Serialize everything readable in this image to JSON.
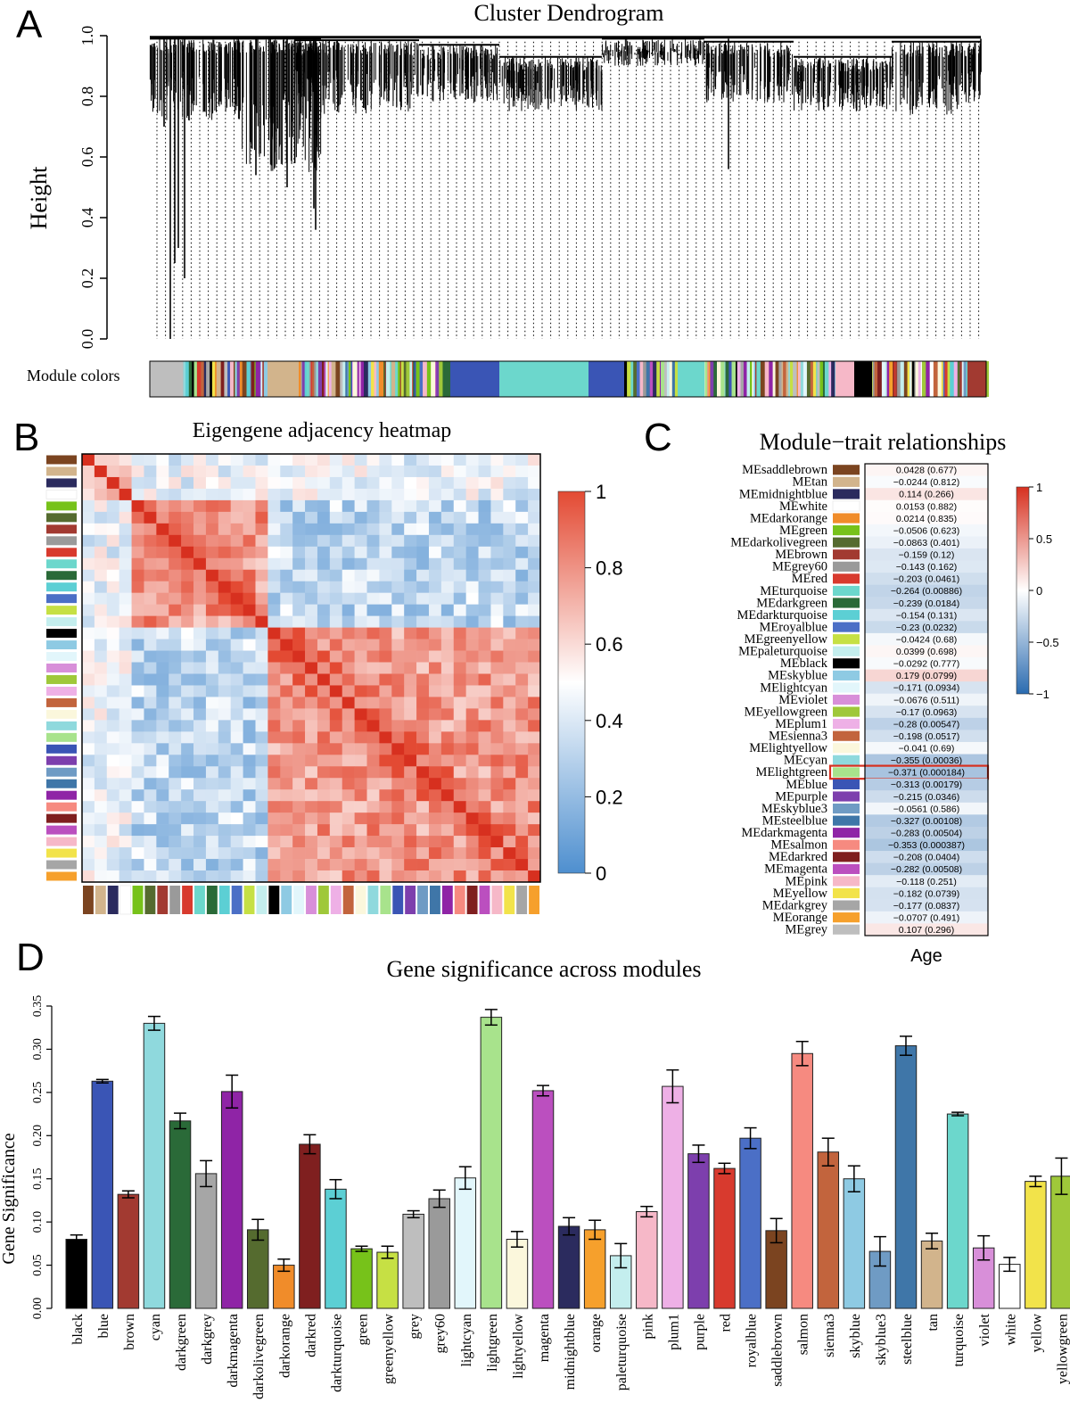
{
  "panels": {
    "a": "A",
    "b": "B",
    "c": "C",
    "d": "D"
  },
  "colors": {
    "black": "#000000",
    "blue": "#3a55b5",
    "brown": "#a23a31",
    "cyan": "#8fd9dd",
    "darkgreen": "#2a6a38",
    "darkgrey": "#a6a6a6",
    "darkmagenta": "#8f24a6",
    "darkolivegreen": "#556b2f",
    "darkorange": "#f08c2a",
    "darkred": "#7f1f1f",
    "darkturquoise": "#5ccfd4",
    "green": "#77c21a",
    "greenyellow": "#c6e044",
    "grey": "#bebebe",
    "grey60": "#9a9a9a",
    "lightcyan": "#e2f6fb",
    "lightgreen": "#a8e38c",
    "lightyellow": "#fbf7dc",
    "magenta": "#bb4fbf",
    "midnightblue": "#2b2b5e",
    "orange": "#f6a02c",
    "paleturquoise": "#c4eeee",
    "pink": "#f6b8c8",
    "plum1": "#eeb0e6",
    "purple": "#7d3fad",
    "red": "#d83a2e",
    "royalblue": "#4b6fc6",
    "saddlebrown": "#7b4420",
    "salmon": "#f68a80",
    "sienna3": "#c2643d",
    "skyblue": "#8ecae3",
    "skyblue3": "#6f9bc4",
    "steelblue": "#3f76a8",
    "tan": "#d2b48c",
    "turquoise": "#6cd7cc",
    "violet": "#d88fd9",
    "white": "#ffffff",
    "yellow": "#f2e34a",
    "yellowgreen": "#9fc83a",
    "heat_high": "#e34a33",
    "heat_mid": "#ffffff",
    "heat_low": "#4e8fcf",
    "highlight_box": "#d7301f"
  },
  "chart_data": [
    {
      "id": "A",
      "type": "dendrogram",
      "title": "Cluster Dendrogram",
      "ylabel": "Height",
      "ylim": [
        0,
        1
      ],
      "yticks": [
        "0.0",
        "0.2",
        "0.4",
        "0.6",
        "0.8",
        "1.0"
      ],
      "color_bar_label": "Module colors",
      "color_bar_modules": [
        "grey",
        "tan",
        "greenyellow",
        "darkorange",
        "sienna3",
        "pink",
        "midnightblue",
        "white",
        "purple",
        "blue",
        "royalblue",
        "cyan",
        "turquoise",
        "darkred",
        "yellow",
        "lightgreen",
        "magenta",
        "black",
        "salmon",
        "brown",
        "steelblue"
      ]
    },
    {
      "id": "B",
      "type": "heatmap",
      "title": "Eigengene adjacency heatmap",
      "order": [
        "saddlebrown",
        "tan",
        "midnightblue",
        "white",
        "green",
        "darkolivegreen",
        "brown",
        "grey60",
        "red",
        "turquoise",
        "darkgreen",
        "darkturquoise",
        "royalblue",
        "greenyellow",
        "paleturquoise",
        "black",
        "skyblue",
        "lightcyan",
        "violet",
        "yellowgreen",
        "plum1",
        "sienna3",
        "lightyellow",
        "cyan",
        "lightgreen",
        "blue",
        "purple",
        "skyblue3",
        "steelblue",
        "darkmagenta",
        "salmon",
        "darkred",
        "magenta",
        "pink",
        "yellow",
        "darkgrey",
        "orange"
      ],
      "colorbar_ticks": [
        "0",
        "0.2",
        "0.4",
        "0.6",
        "0.8",
        "1"
      ],
      "range": [
        0,
        1
      ]
    },
    {
      "id": "C",
      "type": "table",
      "title": "Module−trait relationships",
      "trait": "Age",
      "colorbar_ticks": [
        "1",
        "0.5",
        "0",
        "−0.5",
        "−1"
      ],
      "rows": [
        {
          "module": "MEsaddlebrown",
          "color": "saddlebrown",
          "r": 0.0428,
          "label": "0.0428 (0.677)"
        },
        {
          "module": "MEtan",
          "color": "tan",
          "r": -0.0244,
          "label": "−0.0244 (0.812)"
        },
        {
          "module": "MEmidnightblue",
          "color": "midnightblue",
          "r": 0.114,
          "label": "0.114 (0.266)"
        },
        {
          "module": "MEwhite",
          "color": "white",
          "r": 0.0153,
          "label": "0.0153 (0.882)"
        },
        {
          "module": "MEdarkorange",
          "color": "darkorange",
          "r": 0.0214,
          "label": "0.0214 (0.835)"
        },
        {
          "module": "MEgreen",
          "color": "green",
          "r": -0.0506,
          "label": "−0.0506 (0.623)"
        },
        {
          "module": "MEdarkolivegreen",
          "color": "darkolivegreen",
          "r": -0.0863,
          "label": "−0.0863 (0.401)"
        },
        {
          "module": "MEbrown",
          "color": "brown",
          "r": -0.159,
          "label": "−0.159 (0.12)"
        },
        {
          "module": "MEgrey60",
          "color": "grey60",
          "r": -0.143,
          "label": "−0.143 (0.162)"
        },
        {
          "module": "MEred",
          "color": "red",
          "r": -0.203,
          "label": "−0.203 (0.0461)"
        },
        {
          "module": "MEturquoise",
          "color": "turquoise",
          "r": -0.264,
          "label": "−0.264 (0.00886)"
        },
        {
          "module": "MEdarkgreen",
          "color": "darkgreen",
          "r": -0.239,
          "label": "−0.239 (0.0184)"
        },
        {
          "module": "MEdarkturquoise",
          "color": "darkturquoise",
          "r": -0.154,
          "label": "−0.154 (0.131)"
        },
        {
          "module": "MEroyalblue",
          "color": "royalblue",
          "r": -0.23,
          "label": "−0.23 (0.0232)"
        },
        {
          "module": "MEgreenyellow",
          "color": "greenyellow",
          "r": -0.0424,
          "label": "−0.0424 (0.68)"
        },
        {
          "module": "MEpaleturquoise",
          "color": "paleturquoise",
          "r": 0.0399,
          "label": "0.0399 (0.698)"
        },
        {
          "module": "MEblack",
          "color": "black",
          "r": -0.0292,
          "label": "−0.0292 (0.777)"
        },
        {
          "module": "MEskyblue",
          "color": "skyblue",
          "r": 0.179,
          "label": "0.179 (0.0799)"
        },
        {
          "module": "MElightcyan",
          "color": "lightcyan",
          "r": -0.171,
          "label": "−0.171 (0.0934)"
        },
        {
          "module": "MEviolet",
          "color": "violet",
          "r": -0.0676,
          "label": "−0.0676 (0.511)"
        },
        {
          "module": "MEyellowgreen",
          "color": "yellowgreen",
          "r": -0.17,
          "label": "−0.17 (0.0963)"
        },
        {
          "module": "MEplum1",
          "color": "plum1",
          "r": -0.28,
          "label": "−0.28 (0.00547)"
        },
        {
          "module": "MEsienna3",
          "color": "sienna3",
          "r": -0.198,
          "label": "−0.198 (0.0517)"
        },
        {
          "module": "MElightyellow",
          "color": "lightyellow",
          "r": -0.041,
          "label": "−0.041 (0.69)"
        },
        {
          "module": "MEcyan",
          "color": "cyan",
          "r": -0.355,
          "label": "−0.355 (0.00036)"
        },
        {
          "module": "MElightgreen",
          "color": "lightgreen",
          "r": -0.371,
          "label": "−0.371 (0.000184)",
          "highlight": true
        },
        {
          "module": "MEblue",
          "color": "blue",
          "r": -0.313,
          "label": "−0.313 (0.00179)"
        },
        {
          "module": "MEpurple",
          "color": "purple",
          "r": -0.215,
          "label": "−0.215 (0.0346)"
        },
        {
          "module": "MEskyblue3",
          "color": "skyblue3",
          "r": -0.0561,
          "label": "−0.0561 (0.586)"
        },
        {
          "module": "MEsteelblue",
          "color": "steelblue",
          "r": -0.327,
          "label": "−0.327 (0.00108)"
        },
        {
          "module": "MEdarkmagenta",
          "color": "darkmagenta",
          "r": -0.283,
          "label": "−0.283 (0.00504)"
        },
        {
          "module": "MEsalmon",
          "color": "salmon",
          "r": -0.353,
          "label": "−0.353 (0.000387)"
        },
        {
          "module": "MEdarkred",
          "color": "darkred",
          "r": -0.208,
          "label": "−0.208 (0.0404)"
        },
        {
          "module": "MEmagenta",
          "color": "magenta",
          "r": -0.282,
          "label": "−0.282 (0.00508)"
        },
        {
          "module": "MEpink",
          "color": "pink",
          "r": -0.118,
          "label": "−0.118 (0.251)"
        },
        {
          "module": "MEyellow",
          "color": "yellow",
          "r": -0.182,
          "label": "−0.182 (0.0739)"
        },
        {
          "module": "MEdarkgrey",
          "color": "darkgrey",
          "r": -0.177,
          "label": "−0.177 (0.0837)"
        },
        {
          "module": "MEorange",
          "color": "orange",
          "r": -0.0707,
          "label": "−0.0707 (0.491)"
        },
        {
          "module": "MEgrey",
          "color": "grey",
          "r": 0.107,
          "label": "0.107 (0.296)"
        }
      ]
    },
    {
      "id": "D",
      "type": "bar",
      "title": "Gene significance across modules",
      "ylabel": "Gene Significance",
      "ylim": [
        0,
        0.35
      ],
      "yticks": [
        "0.00",
        "0.05",
        "0.10",
        "0.15",
        "0.20",
        "0.25",
        "0.30",
        "0.35"
      ],
      "categories": [
        "black",
        "blue",
        "brown",
        "cyan",
        "darkgreen",
        "darkgrey",
        "darkmagenta",
        "darkolivegreen",
        "darkorange",
        "darkred",
        "darkturquoise",
        "green",
        "greenyellow",
        "grey",
        "grey60",
        "lightcyan",
        "lightgreen",
        "lightyellow",
        "magenta",
        "midnightblue",
        "orange",
        "paleturquoise",
        "pink",
        "plum1",
        "purple",
        "red",
        "royalblue",
        "saddlebrown",
        "salmon",
        "sienna3",
        "skyblue",
        "skyblue3",
        "steelblue",
        "tan",
        "turquoise",
        "violet",
        "white",
        "yellow",
        "yellowgreen"
      ],
      "values": [
        0.08,
        0.263,
        0.132,
        0.33,
        0.217,
        0.156,
        0.251,
        0.091,
        0.05,
        0.19,
        0.138,
        0.069,
        0.065,
        0.109,
        0.127,
        0.151,
        0.337,
        0.08,
        0.252,
        0.095,
        0.091,
        0.061,
        0.112,
        0.257,
        0.179,
        0.162,
        0.197,
        0.09,
        0.295,
        0.181,
        0.15,
        0.066,
        0.304,
        0.078,
        0.225,
        0.07,
        0.051,
        0.147,
        0.153
      ],
      "errors": [
        0.005,
        0.002,
        0.004,
        0.008,
        0.009,
        0.015,
        0.019,
        0.012,
        0.007,
        0.011,
        0.011,
        0.003,
        0.007,
        0.004,
        0.01,
        0.013,
        0.009,
        0.009,
        0.006,
        0.01,
        0.011,
        0.014,
        0.006,
        0.019,
        0.01,
        0.006,
        0.012,
        0.014,
        0.014,
        0.016,
        0.015,
        0.017,
        0.011,
        0.009,
        0.002,
        0.014,
        0.008,
        0.006,
        0.021
      ]
    }
  ]
}
